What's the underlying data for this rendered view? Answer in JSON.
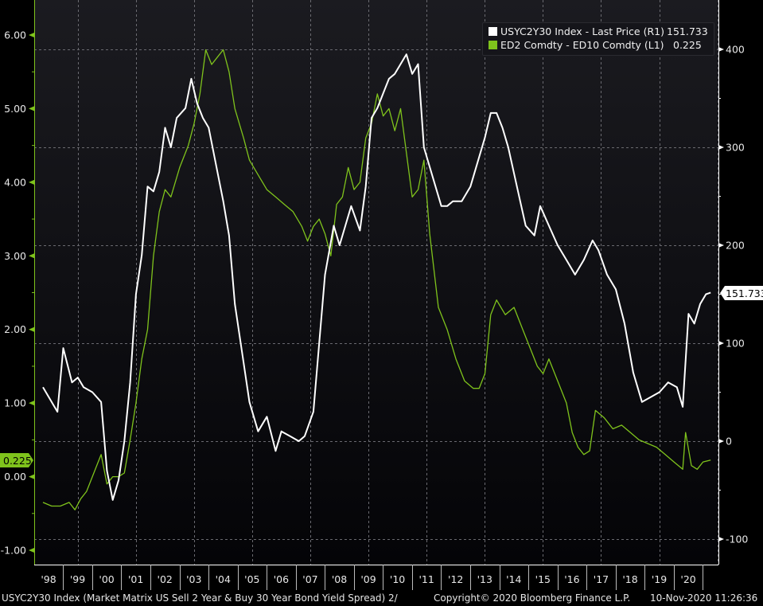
{
  "chart_data": {
    "type": "line",
    "title": "",
    "xlabel": "",
    "x_tick_labels": [
      "'98",
      "'99",
      "'00",
      "'01",
      "'02",
      "'03",
      "'04",
      "'05",
      "'06",
      "'07",
      "'08",
      "'09",
      "'10",
      "'11",
      "'12",
      "'13",
      "'14",
      "'15",
      "'16",
      "'17",
      "'18",
      "'19",
      "'20"
    ],
    "left_axis": {
      "label": "ED2 Comdty - ED10 Comdty (L1)",
      "ticks": [
        "6.00",
        "5.00",
        "4.00",
        "3.00",
        "2.00",
        "1.00",
        "0.00",
        "-1.00"
      ],
      "range": [
        -1.2,
        6.5
      ],
      "color": "#7fc31c"
    },
    "right_axis": {
      "label": "USYC2Y30 Index - Last Price (R1)",
      "ticks": [
        "400",
        "300",
        "200",
        "100",
        "0",
        "-100"
      ],
      "range": [
        -120,
        450
      ],
      "color": "#ffffff"
    },
    "grid": true,
    "legend_position": "top-right",
    "series": [
      {
        "name": "USYC2Y30 Index - Last Price (R1)",
        "axis": "right",
        "color": "#ffffff",
        "last_value": "151.733",
        "x": [
          1997.9,
          1998.2,
          1998.4,
          1998.6,
          1998.9,
          1999.1,
          1999.3,
          1999.6,
          1999.9,
          2000.1,
          2000.3,
          2000.5,
          2000.7,
          2000.9,
          2001.1,
          2001.3,
          2001.5,
          2001.7,
          2001.9,
          2002.1,
          2002.3,
          2002.5,
          2002.8,
          2003.0,
          2003.2,
          2003.4,
          2003.6,
          2003.8,
          2004.1,
          2004.3,
          2004.5,
          2004.8,
          2005.0,
          2005.3,
          2005.6,
          2005.9,
          2006.1,
          2006.4,
          2006.7,
          2006.9,
          2007.2,
          2007.4,
          2007.6,
          2007.9,
          2008.1,
          2008.3,
          2008.5,
          2008.8,
          2009.0,
          2009.2,
          2009.4,
          2009.6,
          2009.8,
          2010.0,
          2010.2,
          2010.4,
          2010.6,
          2010.8,
          2011.0,
          2011.2,
          2011.4,
          2011.6,
          2011.8,
          2012.0,
          2012.3,
          2012.6,
          2012.9,
          2013.1,
          2013.3,
          2013.5,
          2013.7,
          2013.9,
          2014.2,
          2014.5,
          2014.8,
          2015.0,
          2015.3,
          2015.6,
          2015.9,
          2016.2,
          2016.5,
          2016.8,
          2017.0,
          2017.3,
          2017.6,
          2017.9,
          2018.2,
          2018.5,
          2018.8,
          2019.1,
          2019.4,
          2019.7,
          2019.9,
          2020.1,
          2020.3,
          2020.5,
          2020.7,
          2020.86
        ],
        "values": [
          55,
          40,
          30,
          95,
          60,
          65,
          55,
          50,
          40,
          -30,
          -60,
          -40,
          0,
          60,
          150,
          190,
          260,
          255,
          275,
          320,
          300,
          330,
          340,
          370,
          345,
          330,
          320,
          290,
          245,
          210,
          140,
          80,
          40,
          10,
          25,
          -10,
          10,
          5,
          0,
          5,
          30,
          100,
          170,
          220,
          200,
          220,
          240,
          215,
          260,
          330,
          340,
          355,
          370,
          375,
          385,
          395,
          375,
          385,
          300,
          280,
          260,
          240,
          240,
          245,
          245,
          260,
          290,
          310,
          335,
          335,
          320,
          300,
          260,
          220,
          210,
          240,
          220,
          200,
          185,
          170,
          185,
          205,
          195,
          170,
          155,
          120,
          70,
          40,
          45,
          50,
          60,
          55,
          35,
          130,
          120,
          140,
          150,
          151.733
        ]
      },
      {
        "name": "ED2 Comdty - ED10 Comdty (L1)",
        "axis": "left",
        "color": "#7fc31c",
        "last_value": "0.225",
        "x": [
          1997.9,
          1998.2,
          1998.5,
          1998.8,
          1999.0,
          1999.2,
          1999.4,
          1999.7,
          1999.9,
          2000.1,
          2000.3,
          2000.5,
          2000.7,
          2000.9,
          2001.1,
          2001.3,
          2001.5,
          2001.7,
          2001.9,
          2002.1,
          2002.3,
          2002.6,
          2002.9,
          2003.1,
          2003.3,
          2003.5,
          2003.7,
          2003.9,
          2004.1,
          2004.3,
          2004.5,
          2004.8,
          2005.0,
          2005.3,
          2005.6,
          2005.9,
          2006.2,
          2006.5,
          2006.8,
          2007.0,
          2007.2,
          2007.4,
          2007.6,
          2007.8,
          2008.0,
          2008.2,
          2008.4,
          2008.6,
          2008.8,
          2009.0,
          2009.2,
          2009.4,
          2009.6,
          2009.8,
          2010.0,
          2010.2,
          2010.4,
          2010.6,
          2010.8,
          2011.0,
          2011.2,
          2011.5,
          2011.8,
          2012.1,
          2012.4,
          2012.7,
          2012.9,
          2013.1,
          2013.3,
          2013.5,
          2013.8,
          2014.1,
          2014.4,
          2014.7,
          2014.9,
          2015.1,
          2015.3,
          2015.6,
          2015.9,
          2016.1,
          2016.3,
          2016.5,
          2016.7,
          2016.9,
          2017.2,
          2017.5,
          2017.8,
          2018.1,
          2018.4,
          2018.7,
          2019.0,
          2019.3,
          2019.6,
          2019.9,
          2020.0,
          2020.2,
          2020.4,
          2020.6,
          2020.86
        ],
        "values": [
          -0.35,
          -0.4,
          -0.4,
          -0.35,
          -0.45,
          -0.3,
          -0.2,
          0.1,
          0.3,
          -0.1,
          0.0,
          0.0,
          0.05,
          0.5,
          1.0,
          1.6,
          2.0,
          3.0,
          3.6,
          3.9,
          3.8,
          4.2,
          4.5,
          4.8,
          5.2,
          5.8,
          5.6,
          5.7,
          5.8,
          5.5,
          5.0,
          4.6,
          4.3,
          4.1,
          3.9,
          3.8,
          3.7,
          3.6,
          3.4,
          3.2,
          3.4,
          3.5,
          3.3,
          3.0,
          3.7,
          3.8,
          4.2,
          3.9,
          4.0,
          4.6,
          4.8,
          5.2,
          4.9,
          5.0,
          4.7,
          5.0,
          4.4,
          3.8,
          3.9,
          4.3,
          3.3,
          2.3,
          2.0,
          1.6,
          1.3,
          1.2,
          1.2,
          1.4,
          2.2,
          2.4,
          2.2,
          2.3,
          2.0,
          1.7,
          1.5,
          1.4,
          1.6,
          1.3,
          1.0,
          0.6,
          0.4,
          0.3,
          0.35,
          0.9,
          0.8,
          0.65,
          0.7,
          0.6,
          0.5,
          0.45,
          0.4,
          0.3,
          0.2,
          0.1,
          0.6,
          0.15,
          0.1,
          0.2,
          0.225
        ]
      }
    ]
  },
  "legend": {
    "items": [
      {
        "label": "USYC2Y30 Index - Last Price (R1)",
        "value": "151.733",
        "color": "#ffffff"
      },
      {
        "label": "ED2 Comdty - ED10 Comdty (L1)",
        "value": "0.225",
        "color": "#7fc31c"
      }
    ]
  },
  "markers": {
    "left_last": "0.225",
    "right_last": "151.733"
  },
  "footer": {
    "description": "USYC2Y30 Index (Market Matrix US Sell 2 Year & Buy 30 Year Bond Yield Spread) 2/",
    "copyright": "Copyright© 2020 Bloomberg Finance L.P.",
    "timestamp": "10-Nov-2020 11:26:36"
  }
}
